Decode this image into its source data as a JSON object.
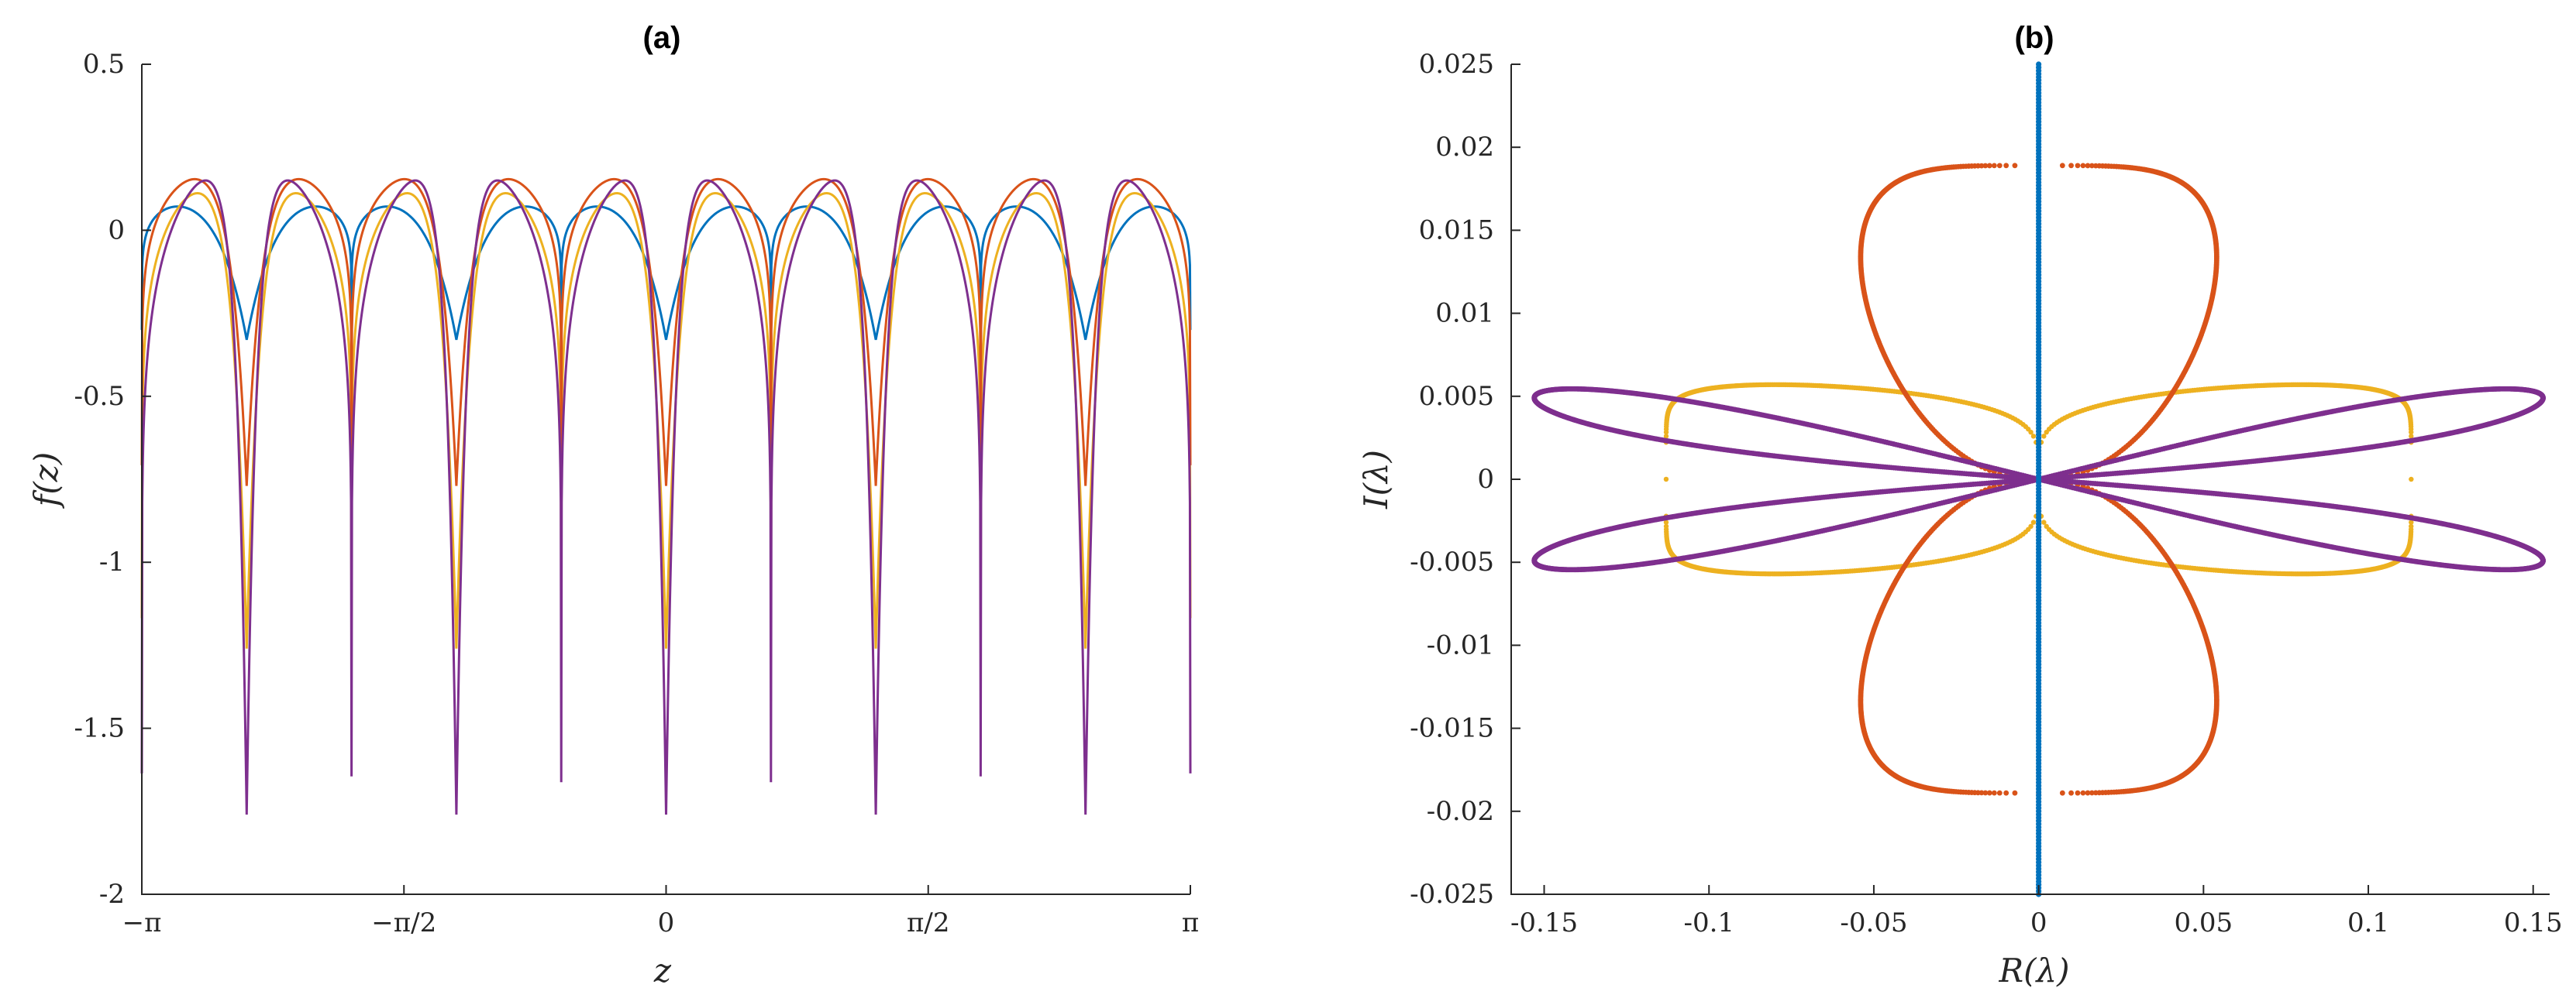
{
  "chart_data": [
    {
      "type": "line",
      "title": "(a)",
      "xlabel": "z",
      "ylabel": "f(z)",
      "xlim": [
        -3.14159265,
        3.14159265
      ],
      "ylim": [
        -2,
        0.5
      ],
      "xticks": [
        {
          "value": -3.14159265,
          "label": "−π"
        },
        {
          "value": -1.57079633,
          "label": "−π/2"
        },
        {
          "value": 0,
          "label": "0"
        },
        {
          "value": 1.57079633,
          "label": "π/2"
        },
        {
          "value": 3.14159265,
          "label": "π"
        }
      ],
      "yticks": [
        {
          "value": 0.5,
          "label": "0.5"
        },
        {
          "value": 0,
          "label": "0"
        },
        {
          "value": -0.5,
          "label": "-0.5"
        },
        {
          "value": -1,
          "label": "-1"
        },
        {
          "value": -1.5,
          "label": "-1.5"
        },
        {
          "value": -2,
          "label": "-2"
        }
      ],
      "periods": 5,
      "dip_centers": [
        -2.5133,
        -1.2566,
        0,
        1.2566,
        2.5133
      ],
      "series": [
        {
          "name": "series-blue",
          "color": "#0072BD",
          "plateau": 0.165,
          "minimum": -0.33,
          "width": 0.4
        },
        {
          "name": "series-yellow",
          "color": "#EDB120",
          "plateau": 0.215,
          "minimum": -1.26,
          "width": 0.18
        },
        {
          "name": "series-orange",
          "color": "#D95319",
          "plateau": 0.235,
          "minimum": -0.77,
          "width": 0.2
        },
        {
          "name": "series-purple",
          "color": "#7E2F8E",
          "plateau": 0.24,
          "minimum": -1.76,
          "width": 0.13
        }
      ]
    },
    {
      "type": "scatter",
      "title": "(b)",
      "xlabel": "R(λ)",
      "ylabel": "I(λ)",
      "xlim": [
        -0.16,
        0.155
      ],
      "ylim": [
        -0.025,
        0.025
      ],
      "xticks": [
        {
          "value": -0.15,
          "label": "-0.15"
        },
        {
          "value": -0.1,
          "label": "-0.1"
        },
        {
          "value": -0.05,
          "label": "-0.05"
        },
        {
          "value": 0,
          "label": "0"
        },
        {
          "value": 0.05,
          "label": "0.05"
        },
        {
          "value": 0.1,
          "label": "0.1"
        },
        {
          "value": 0.15,
          "label": "0.15"
        }
      ],
      "yticks": [
        {
          "value": 0.025,
          "label": "0.025"
        },
        {
          "value": 0.02,
          "label": "0.02"
        },
        {
          "value": 0.015,
          "label": "0.015"
        },
        {
          "value": 0.01,
          "label": "0.01"
        },
        {
          "value": 0.005,
          "label": "0.005"
        },
        {
          "value": 0,
          "label": "0"
        },
        {
          "value": -0.005,
          "label": "-0.005"
        },
        {
          "value": -0.01,
          "label": "-0.01"
        },
        {
          "value": -0.015,
          "label": "-0.015"
        },
        {
          "value": -0.02,
          "label": "-0.02"
        },
        {
          "value": -0.025,
          "label": "-0.025"
        }
      ],
      "series": [
        {
          "name": "spectrum-blue",
          "color": "#0072BD",
          "shape": "imaginary-axis",
          "ymax": 0.025
        },
        {
          "name": "spectrum-orange",
          "color": "#D95319",
          "shape": "vertical-figure-eight",
          "x_extent": 0.054,
          "y_extent": 0.0189
        },
        {
          "name": "spectrum-yellow",
          "color": "#EDB120",
          "shape": "horizontal-figure-eight",
          "x_extent": 0.113,
          "y_extent": 0.0057
        },
        {
          "name": "spectrum-purple",
          "color": "#7E2F8E",
          "shape": "tilted-figure-eight",
          "x_extent": 0.153,
          "y_extent": 0.0049
        }
      ]
    }
  ]
}
